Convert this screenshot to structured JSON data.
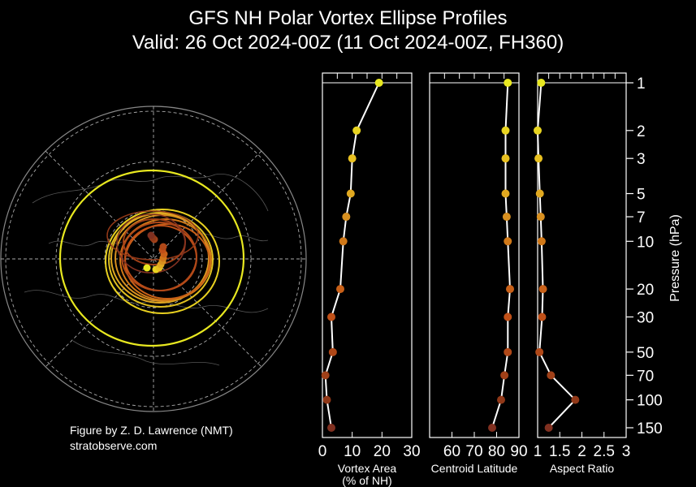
{
  "title": {
    "line1": "GFS NH Polar Vortex Ellipse Profiles",
    "line2": "Valid: 26 Oct 2024-00Z  (11 Oct 2024-00Z, FH360)"
  },
  "credit": {
    "line1": "Figure by Z. D. Lawrence (NMT)",
    "line2": "stratobserve.com"
  },
  "chart_data": [
    {
      "type": "map",
      "projection": "north-polar-stereographic",
      "description_visible": "vortex edge ellipses colored by pressure level with centroid dots",
      "centroids": [
        {
          "level": 1,
          "color": "#e8e820"
        },
        {
          "level": 2,
          "color": "#e8d420"
        },
        {
          "level": 3,
          "color": "#e8c020"
        },
        {
          "level": 5,
          "color": "#e0a820"
        },
        {
          "level": 7,
          "color": "#d89020"
        },
        {
          "level": 10,
          "color": "#d07818"
        },
        {
          "level": 20,
          "color": "#c86018"
        },
        {
          "level": 30,
          "color": "#c05018"
        },
        {
          "level": 50,
          "color": "#b04818"
        },
        {
          "level": 70,
          "color": "#a04018"
        },
        {
          "level": 100,
          "color": "#903818"
        },
        {
          "level": 150,
          "color": "#803020"
        }
      ]
    },
    {
      "type": "line",
      "xlabel": "Vortex Area\n(% of NH)",
      "ylabel": "",
      "xlim": [
        0,
        30
      ],
      "xticks": [
        0,
        10,
        20,
        30
      ],
      "points": [
        {
          "p": 1,
          "x": 19
        },
        {
          "p": 2,
          "x": 11.5
        },
        {
          "p": 3,
          "x": 10
        },
        {
          "p": 5,
          "x": 9.5
        },
        {
          "p": 7,
          "x": 8
        },
        {
          "p": 10,
          "x": 7
        },
        {
          "p": 20,
          "x": 6
        },
        {
          "p": 30,
          "x": 3
        },
        {
          "p": 50,
          "x": 3.5
        },
        {
          "p": 70,
          "x": 1
        },
        {
          "p": 100,
          "x": 1.5
        },
        {
          "p": 150,
          "x": 3
        }
      ]
    },
    {
      "type": "line",
      "xlabel": "Centroid Latitude",
      "xlim": [
        50,
        90
      ],
      "xticks": [
        60,
        70,
        80,
        90
      ],
      "points": [
        {
          "p": 1,
          "x": 85
        },
        {
          "p": 2,
          "x": 84
        },
        {
          "p": 3,
          "x": 84
        },
        {
          "p": 5,
          "x": 84
        },
        {
          "p": 7,
          "x": 84.5
        },
        {
          "p": 10,
          "x": 85
        },
        {
          "p": 20,
          "x": 86
        },
        {
          "p": 30,
          "x": 85
        },
        {
          "p": 50,
          "x": 85
        },
        {
          "p": 70,
          "x": 83.5
        },
        {
          "p": 100,
          "x": 82
        },
        {
          "p": 150,
          "x": 78
        }
      ]
    },
    {
      "type": "line",
      "xlabel": "Aspect Ratio",
      "xlim": [
        1,
        3
      ],
      "xticks": [
        1,
        1.5,
        2,
        2.5,
        3
      ],
      "xticklabels": [
        "1",
        "1.5",
        "2",
        "2.5",
        "3"
      ],
      "points": [
        {
          "p": 1,
          "x": 1.08
        },
        {
          "p": 2,
          "x": 1.0
        },
        {
          "p": 3,
          "x": 1.02
        },
        {
          "p": 5,
          "x": 1.05
        },
        {
          "p": 7,
          "x": 1.07
        },
        {
          "p": 10,
          "x": 1.09
        },
        {
          "p": 20,
          "x": 1.12
        },
        {
          "p": 30,
          "x": 1.1
        },
        {
          "p": 50,
          "x": 1.04
        },
        {
          "p": 70,
          "x": 1.3
        },
        {
          "p": 100,
          "x": 1.85
        },
        {
          "p": 150,
          "x": 1.25
        }
      ]
    }
  ],
  "pressure_axis": {
    "label": "Pressure (hPa)",
    "scale": "log",
    "range": [
      1,
      150
    ],
    "ticks": [
      1,
      2,
      3,
      5,
      7,
      10,
      20,
      30,
      50,
      70,
      100,
      150
    ],
    "ticklabels": [
      "1",
      "2",
      "3",
      "5",
      "7",
      "10",
      "20",
      "30",
      "50",
      "70",
      "100",
      "150"
    ]
  }
}
